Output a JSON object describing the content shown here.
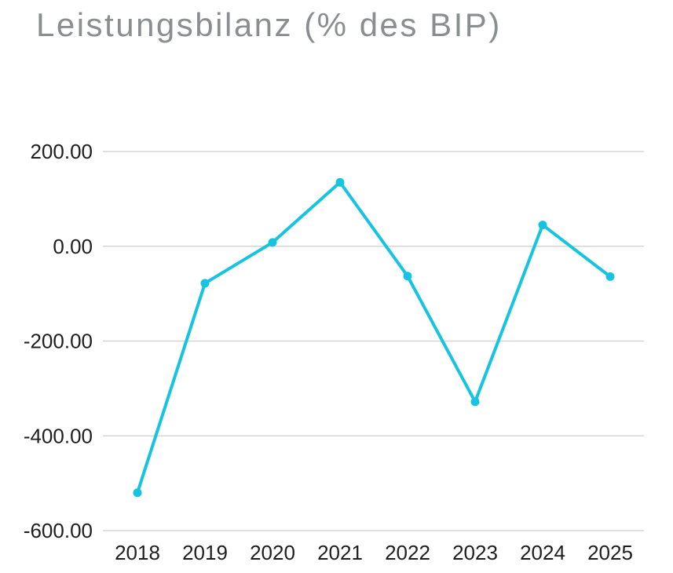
{
  "header": {
    "title": "Leistungsbilanz (% des BIP)"
  },
  "chart_data": {
    "type": "line",
    "title": "Leistungsbilanz (% des BIP)",
    "categories": [
      "2018",
      "2019",
      "2020",
      "2021",
      "2022",
      "2023",
      "2024",
      "2025"
    ],
    "series": [
      {
        "name": "Leistungsbilanz",
        "values": [
          -520,
          -78,
          8,
          135,
          -63,
          -328,
          45,
          -64
        ]
      }
    ],
    "xlabel": "",
    "ylabel": "",
    "ylim": [
      -600,
      200
    ],
    "yticks": [
      {
        "value": 200,
        "label": "200.00"
      },
      {
        "value": 0,
        "label": "0.00"
      },
      {
        "value": -200,
        "label": "-200.00"
      },
      {
        "value": -400,
        "label": "-400.00"
      },
      {
        "value": -600,
        "label": "-600.00"
      }
    ],
    "grid": "horizontal-only",
    "legend": "none",
    "markers": true,
    "colors": {
      "line": "#16C4DF",
      "marker": "#16C4DF",
      "gridline": "#D5D5D5",
      "tick_text": "#1E1E1E",
      "title_text": "#8B8E90",
      "background": "#FFFFFF"
    }
  }
}
